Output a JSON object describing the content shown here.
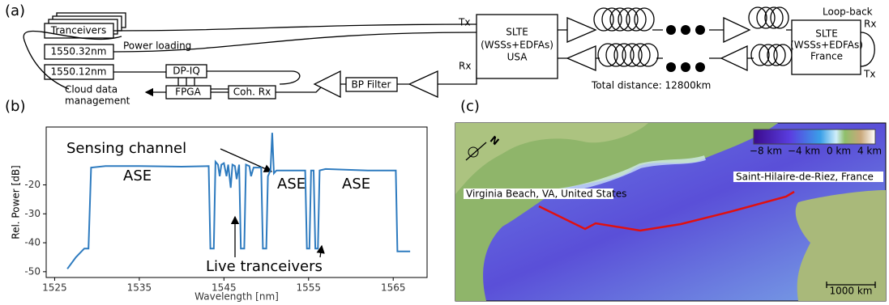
{
  "panel_labels": [
    "(a)",
    "(b)",
    "(c)"
  ],
  "panel_a": {
    "nodes": [
      "Tranceivers",
      "1550.32nm",
      "1550.12nm",
      "DP-IQ",
      "FPGA",
      "Coh. Rx",
      "BP Filter"
    ],
    "slte_usa": [
      "SLTE",
      "(WSSs+EDFAs)",
      "USA"
    ],
    "slte_france": [
      "SLTE",
      "(WSSs+EDFAs)",
      "France"
    ],
    "labels": {
      "power_loading": "Power loading",
      "cloud": [
        "Cloud data",
        "management"
      ],
      "tx_usa": "Tx",
      "rx_usa": "Rx",
      "loop_back": "Loop-back",
      "rx_fr": "Rx",
      "tx_fr": "Tx",
      "distance": "Total distance: 12800km"
    }
  },
  "chart_data": {
    "type": "line",
    "color": "#2e7bbf",
    "x_label": "Wavelength [nm]",
    "y_label": "Rel. Power [dB]",
    "x": [
      1526.5,
      1527.5,
      1528.5,
      1529.0,
      1529.3,
      1531,
      1535,
      1540,
      1543.2,
      1543.4,
      1543.8,
      1544.0,
      1544.3,
      1544.5,
      1544.7,
      1545.0,
      1545.3,
      1545.5,
      1545.8,
      1546.0,
      1546.3,
      1546.5,
      1546.8,
      1547.0,
      1547.4,
      1547.6,
      1548.0,
      1548.2,
      1548.5,
      1549.4,
      1549.6,
      1550.0,
      1550.2,
      1550.5,
      1550.7,
      1550.9,
      1551.2,
      1554.6,
      1554.8,
      1555.1,
      1555.3,
      1555.6,
      1555.8,
      1556.1,
      1556.3,
      1557,
      1562,
      1565.3,
      1565.5,
      1567
    ],
    "values": [
      -49,
      -45,
      -42,
      -42,
      -14,
      -13.5,
      -13.5,
      -13.7,
      -13.5,
      -42,
      -42,
      -12,
      -13,
      -17,
      -13,
      -12.5,
      -17,
      -13,
      -21,
      -13,
      -13.5,
      -18,
      -13,
      -42,
      -42,
      -13,
      -13.5,
      -17,
      -14,
      -14,
      -42,
      -42,
      -17,
      -15,
      -2,
      -16,
      -15,
      -15,
      -42,
      -42,
      -15,
      -15,
      -42,
      -42,
      -15,
      -14.5,
      -15,
      -15,
      -43,
      -43
    ],
    "xlim": [
      1524,
      1569
    ],
    "xticks": [
      1525,
      1535,
      1545,
      1555,
      1565
    ],
    "ylim": [
      -52,
      0
    ],
    "yticks": [
      -50,
      -40,
      -30,
      -20
    ],
    "annotations": [
      "ASE",
      "ASE",
      "ASE",
      "Sensing channel",
      "Live tranceivers"
    ]
  },
  "panel_c": {
    "colorbar_ticks": [
      "−8 km",
      "−4 km",
      "0 km",
      "4 km"
    ],
    "places": [
      "Virginia Beach, VA, United States",
      "Saint-Hilaire-de-Riez, France"
    ],
    "north": "N",
    "scale": "1000 km"
  }
}
